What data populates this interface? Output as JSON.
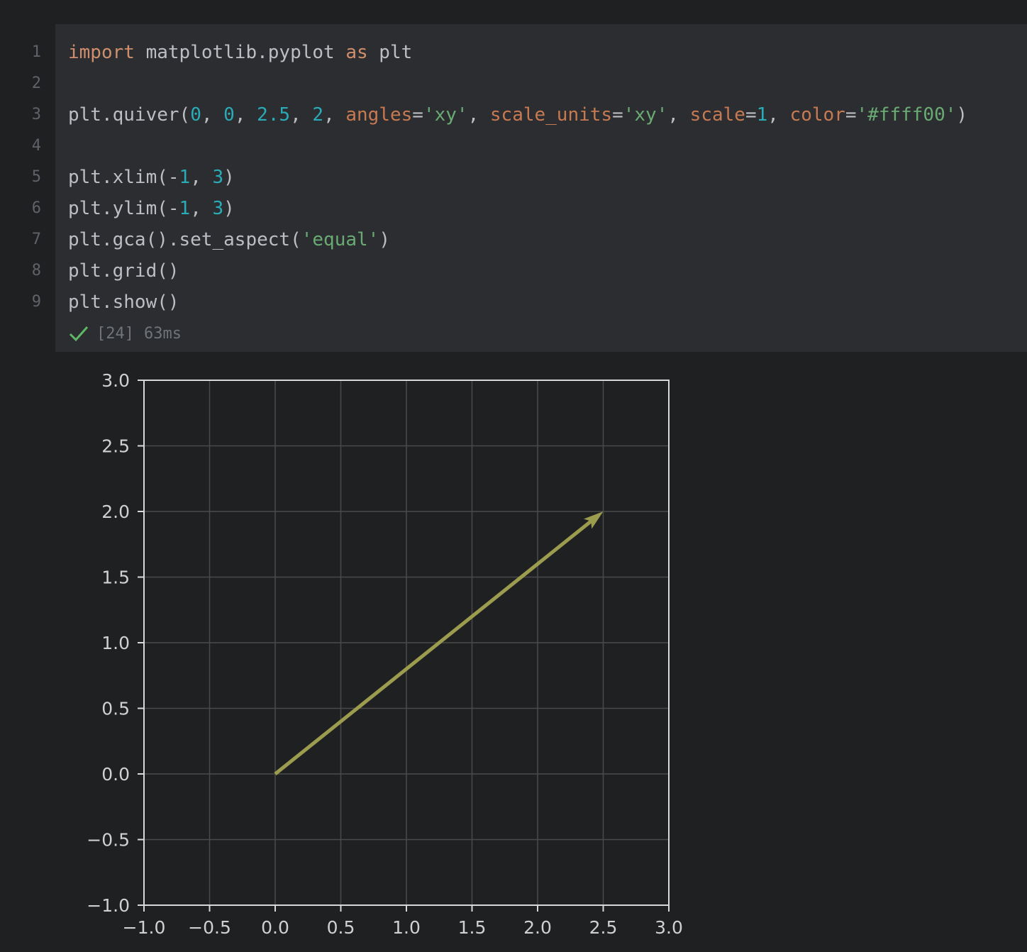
{
  "code_cell": {
    "line_numbers": [
      "1",
      "2",
      "3",
      "4",
      "5",
      "6",
      "7",
      "8",
      "9"
    ],
    "lines": [
      [
        {
          "t": "import",
          "c": "kw"
        },
        {
          "t": " matplotlib.pyplot "
        },
        {
          "t": "as",
          "c": "kw"
        },
        {
          "t": " plt"
        }
      ],
      [],
      [
        {
          "t": "plt.quiver("
        },
        {
          "t": "0",
          "c": "num"
        },
        {
          "t": ", "
        },
        {
          "t": "0",
          "c": "num"
        },
        {
          "t": ", "
        },
        {
          "t": "2.5",
          "c": "num"
        },
        {
          "t": ", "
        },
        {
          "t": "2",
          "c": "num"
        },
        {
          "t": ", "
        },
        {
          "t": "angles",
          "c": "par"
        },
        {
          "t": "="
        },
        {
          "t": "'xy'",
          "c": "str"
        },
        {
          "t": ", "
        },
        {
          "t": "scale_units",
          "c": "par"
        },
        {
          "t": "="
        },
        {
          "t": "'xy'",
          "c": "str"
        },
        {
          "t": ", "
        },
        {
          "t": "scale",
          "c": "par"
        },
        {
          "t": "="
        },
        {
          "t": "1",
          "c": "num"
        },
        {
          "t": ", "
        },
        {
          "t": "color",
          "c": "par"
        },
        {
          "t": "="
        },
        {
          "t": "'#ffff00'",
          "c": "str"
        },
        {
          "t": ")"
        }
      ],
      [],
      [
        {
          "t": "plt.xlim(-"
        },
        {
          "t": "1",
          "c": "num"
        },
        {
          "t": ", "
        },
        {
          "t": "3",
          "c": "num"
        },
        {
          "t": ")"
        }
      ],
      [
        {
          "t": "plt.ylim(-"
        },
        {
          "t": "1",
          "c": "num"
        },
        {
          "t": ", "
        },
        {
          "t": "3",
          "c": "num"
        },
        {
          "t": ")"
        }
      ],
      [
        {
          "t": "plt.gca().set_aspect("
        },
        {
          "t": "'equal'",
          "c": "str"
        },
        {
          "t": ")"
        }
      ],
      [
        {
          "t": "plt.grid()"
        }
      ],
      [
        {
          "t": "plt.show()"
        }
      ]
    ],
    "execution_count": "[24]",
    "duration": "63ms",
    "status_icon": "check-icon"
  },
  "colors": {
    "background": "#1f2022",
    "cell_background": "#2b2d30",
    "keyword": "#cf8e6d",
    "number": "#2aacb8",
    "string": "#6aab73",
    "parameter": "#c77a52",
    "success": "#5fb865",
    "arrow": "#9c9c4e"
  },
  "chart_data": {
    "type": "quiver",
    "vectors": [
      {
        "x": 0,
        "y": 0,
        "u": 2.5,
        "v": 2
      }
    ],
    "xlim": [
      -1,
      3
    ],
    "ylim": [
      -1,
      3
    ],
    "xticks": [
      "−1.0",
      "−0.5",
      "0.0",
      "0.5",
      "1.0",
      "1.5",
      "2.0",
      "2.5",
      "3.0"
    ],
    "yticks": [
      "−1.0",
      "−0.5",
      "0.0",
      "0.5",
      "1.0",
      "1.5",
      "2.0",
      "2.5",
      "3.0"
    ],
    "grid": true,
    "aspect": "equal",
    "title": "",
    "xlabel": "",
    "ylabel": ""
  }
}
